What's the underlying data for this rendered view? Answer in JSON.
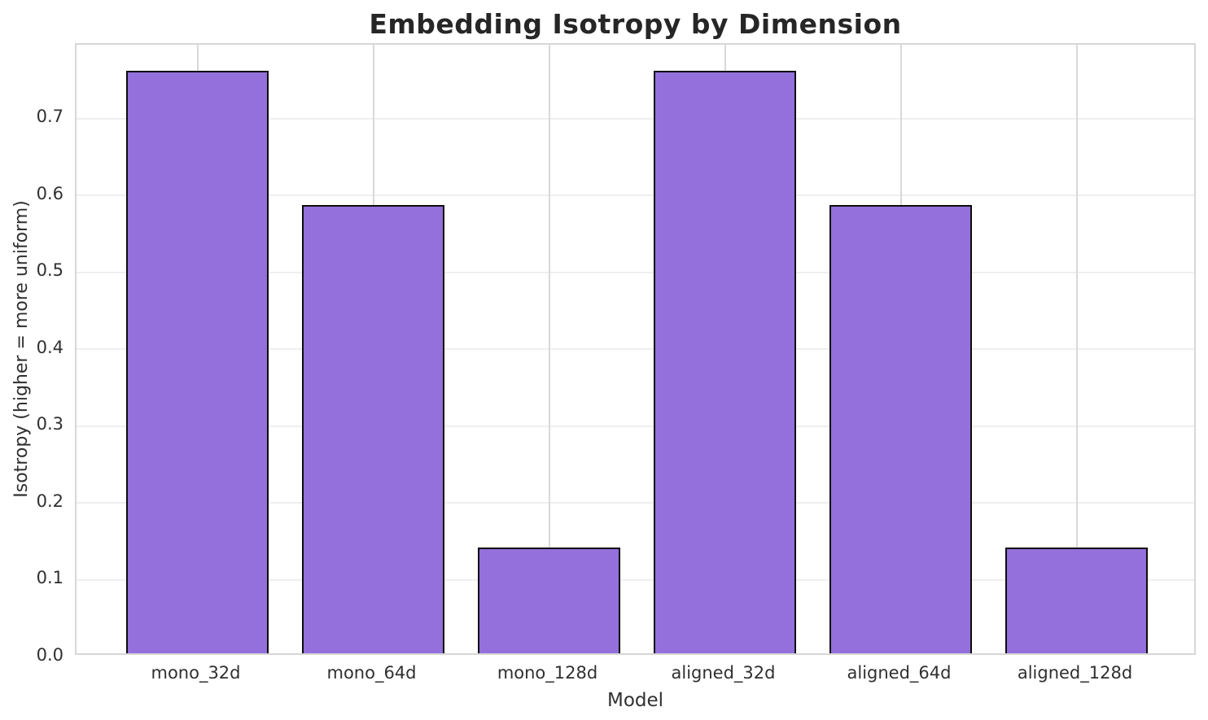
{
  "figure": {
    "background": "#ffffff"
  },
  "colors": {
    "bar_fill": "#9370DB",
    "bar_edge": "#0d0d0d",
    "grid_horizontal": "#efefef",
    "grid_vertical": "#d9d9d9",
    "spine": "#d7d7d7",
    "title_text": "#262626",
    "tick_text": "#303030"
  },
  "chart_data": {
    "type": "bar",
    "title": "Embedding Isotropy by Dimension",
    "xlabel": "Model",
    "ylabel": "Isotropy (higher = more uniform)",
    "categories": [
      "mono_32d",
      "mono_64d",
      "mono_128d",
      "aligned_32d",
      "aligned_64d",
      "aligned_128d"
    ],
    "values": [
      0.758,
      0.583,
      0.138,
      0.758,
      0.583,
      0.138
    ],
    "ylim": [
      0,
      0.796
    ],
    "yticks": [
      0.0,
      0.1,
      0.2,
      0.3,
      0.4,
      0.5,
      0.6,
      0.7
    ],
    "ytick_labels": [
      "0.0",
      "0.1",
      "0.2",
      "0.3",
      "0.4",
      "0.5",
      "0.6",
      "0.7"
    ],
    "grid": "both",
    "legend_position": "none",
    "bar_color": "#9370DB",
    "bar_edge_color": "#0d0d0d"
  }
}
